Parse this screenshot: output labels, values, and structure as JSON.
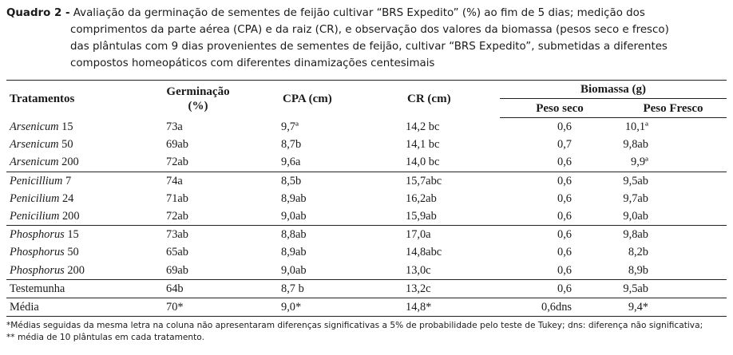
{
  "caption": {
    "label": "Quadro 2 -",
    "line1": " Avaliação da germinação de sementes de feijão cultivar “BRS Expedito” (%) ao fim de 5 dias; medição dos",
    "line2": "comprimentos da parte aérea (CPA) e da raiz (CR), e observação dos valores da biomassa (pesos seco e fresco)",
    "line3": "das plântulas com 9 dias provenientes de sementes de feijão, cultivar “BRS Expedito”, submetidas a diferentes",
    "line4": "compostos homeopáticos com diferentes dinamizações centesimais"
  },
  "table": {
    "headers": {
      "tratamentos": "Tratamentos",
      "germinacao_line1": "Germinação",
      "germinacao_line2": "(%)",
      "cpa": "CPA (cm)",
      "cr": "CR (cm)",
      "biomassa": "Biomassa (g)",
      "peso_seco": "Peso seco",
      "peso_fresco": "Peso Fresco"
    },
    "rows": [
      {
        "name": "Arsenicum",
        "dose": " 15",
        "germ": "73a",
        "cpa": "9,7ª",
        "cr": "14,2 bc",
        "ps": "0,6",
        "pf": "10,1ª"
      },
      {
        "name": "Arsenicum",
        "dose": " 50",
        "germ": "69ab",
        "cpa": "8,7b",
        "cr": "14,1 bc",
        "ps": "0,7",
        "pf": "9,8ab"
      },
      {
        "name": "Arsenicum",
        "dose": " 200",
        "germ": "72ab",
        "cpa": "9,6a",
        "cr": "14,0 bc",
        "ps": "0,6",
        "pf": "9,9ª"
      },
      {
        "name": "Penicillium",
        "dose": " 7",
        "germ": "74a",
        "cpa": "8,5b",
        "cr": "15,7abc",
        "ps": "0,6",
        "pf": "9,5ab"
      },
      {
        "name": "Penicilium",
        "dose": " 24",
        "germ": "71ab",
        "cpa": "8,9ab",
        "cr": "16,2ab",
        "ps": "0,6",
        "pf": "9,7ab"
      },
      {
        "name": "Penicilium",
        "dose": " 200",
        "germ": "72ab",
        "cpa": "9,0ab",
        "cr": "15,9ab",
        "ps": "0,6",
        "pf": "9,0ab"
      },
      {
        "name": "Phosphorus",
        "dose": " 15",
        "germ": "73ab",
        "cpa": "8,8ab",
        "cr": "17,0a",
        "ps": "0,6",
        "pf": "9,8ab"
      },
      {
        "name": "Phosphorus",
        "dose": " 50",
        "germ": "65ab",
        "cpa": "8,9ab",
        "cr": "14,8abc",
        "ps": "0,6",
        "pf": "8,2b"
      },
      {
        "name": "Phosphorus",
        "dose": " 200",
        "germ": "69ab",
        "cpa": "9,0ab",
        "cr": "13,0c",
        "ps": "0,6",
        "pf": "8,9b"
      },
      {
        "name": "",
        "dose": "Testemunha",
        "germ": "64b",
        "cpa": "8,7 b",
        "cr": "13,2c",
        "ps": "0,6",
        "pf": "9,5ab"
      },
      {
        "name": "",
        "dose": "Média",
        "germ": "70*",
        "cpa": "9,0*",
        "cr": "14,8*",
        "ps": "0,6dns",
        "pf": "9,4*"
      }
    ]
  },
  "footnotes": {
    "line1": "*Médias seguidas da mesma letra na coluna não apresentaram diferenças significativas a 5% de probabilidade pelo teste de Tukey; dns: diferença não significativa;",
    "line2": "** média de 10 plântulas em cada tratamento."
  }
}
